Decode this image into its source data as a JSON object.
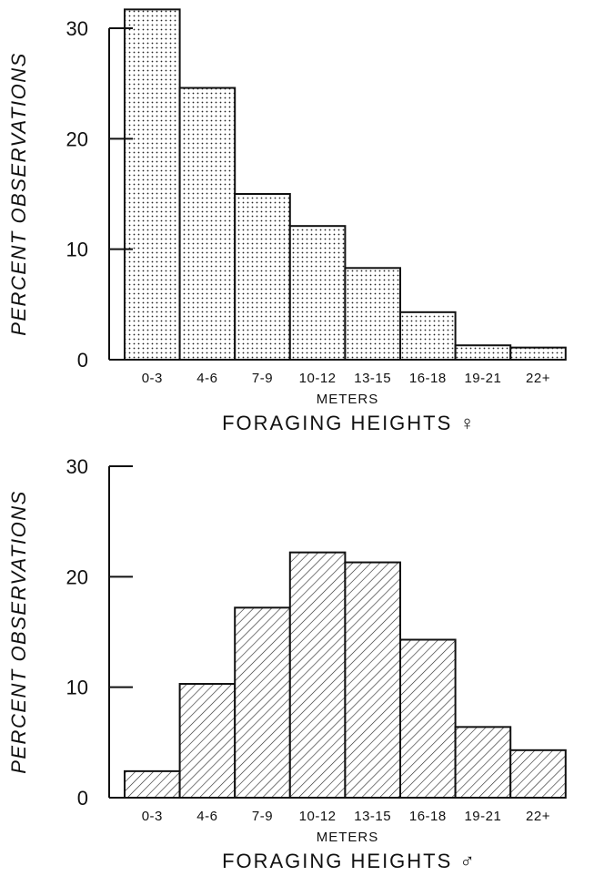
{
  "chart_data": [
    {
      "type": "bar",
      "title": "FORAGING HEIGHTS ♀",
      "xlabel": "METERS",
      "ylabel": "PERCENT OBSERVATIONS",
      "categories": [
        "0-3",
        "4-6",
        "7-9",
        "10-12",
        "13-15",
        "16-18",
        "19-21",
        "22+"
      ],
      "values": [
        31.7,
        24.6,
        15.0,
        12.1,
        8.3,
        4.3,
        1.3,
        1.1
      ],
      "ylim": [
        0,
        30
      ],
      "yticks": [
        0,
        10,
        20,
        30
      ],
      "fill_pattern": "dots",
      "grid": false
    },
    {
      "type": "bar",
      "title": "FORAGING HEIGHTS ♂",
      "xlabel": "METERS",
      "ylabel": "PERCENT OBSERVATIONS",
      "categories": [
        "0-3",
        "4-6",
        "7-9",
        "10-12",
        "13-15",
        "16-18",
        "19-21",
        "22+"
      ],
      "values": [
        2.4,
        10.3,
        17.2,
        22.2,
        21.3,
        14.3,
        6.4,
        4.3
      ],
      "ylim": [
        0,
        30
      ],
      "yticks": [
        0,
        10,
        20,
        30
      ],
      "fill_pattern": "diagonal-hatch",
      "grid": false
    }
  ]
}
